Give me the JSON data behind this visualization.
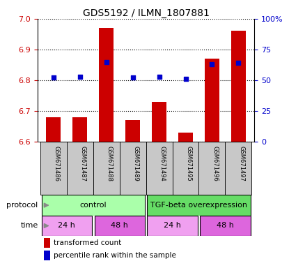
{
  "title": "GDS5192 / ILMN_1807881",
  "samples": [
    "GSM671486",
    "GSM671487",
    "GSM671488",
    "GSM671489",
    "GSM671494",
    "GSM671495",
    "GSM671496",
    "GSM671497"
  ],
  "transformed_count": [
    6.68,
    6.68,
    6.97,
    6.67,
    6.73,
    6.63,
    6.87,
    6.96
  ],
  "percentile_rank": [
    52,
    53,
    65,
    52,
    53,
    51,
    63,
    64
  ],
  "ylim_left": [
    6.6,
    7.0
  ],
  "ylim_right": [
    0,
    100
  ],
  "yticks_left": [
    6.6,
    6.7,
    6.8,
    6.9,
    7.0
  ],
  "yticks_right": [
    0,
    25,
    50,
    75,
    100
  ],
  "ytick_labels_right": [
    "0",
    "25",
    "50",
    "75",
    "100%"
  ],
  "bar_color": "#cc0000",
  "dot_color": "#0000cc",
  "bar_bottom": 6.6,
  "protocol_groups": [
    {
      "label": "control",
      "start": 0,
      "end": 4,
      "color": "#aaffaa"
    },
    {
      "label": "TGF-beta overexpression",
      "start": 4,
      "end": 8,
      "color": "#66dd66"
    }
  ],
  "time_groups": [
    {
      "label": "24 h",
      "start": 0,
      "end": 2,
      "color": "#f0a0f0"
    },
    {
      "label": "48 h",
      "start": 2,
      "end": 4,
      "color": "#dd66dd"
    },
    {
      "label": "24 h",
      "start": 4,
      "end": 6,
      "color": "#f0a0f0"
    },
    {
      "label": "48 h",
      "start": 6,
      "end": 8,
      "color": "#dd66dd"
    }
  ],
  "sample_bg_color": "#c8c8c8",
  "grid_color": "#000000",
  "left_axis_color": "#cc0000",
  "right_axis_color": "#0000cc",
  "protocol_label": "protocol",
  "time_label": "time",
  "legend_items": [
    {
      "label": "transformed count",
      "color": "#cc0000"
    },
    {
      "label": "percentile rank within the sample",
      "color": "#0000cc"
    }
  ],
  "height_ratios": [
    3.0,
    1.3,
    0.5,
    0.5,
    0.65
  ]
}
